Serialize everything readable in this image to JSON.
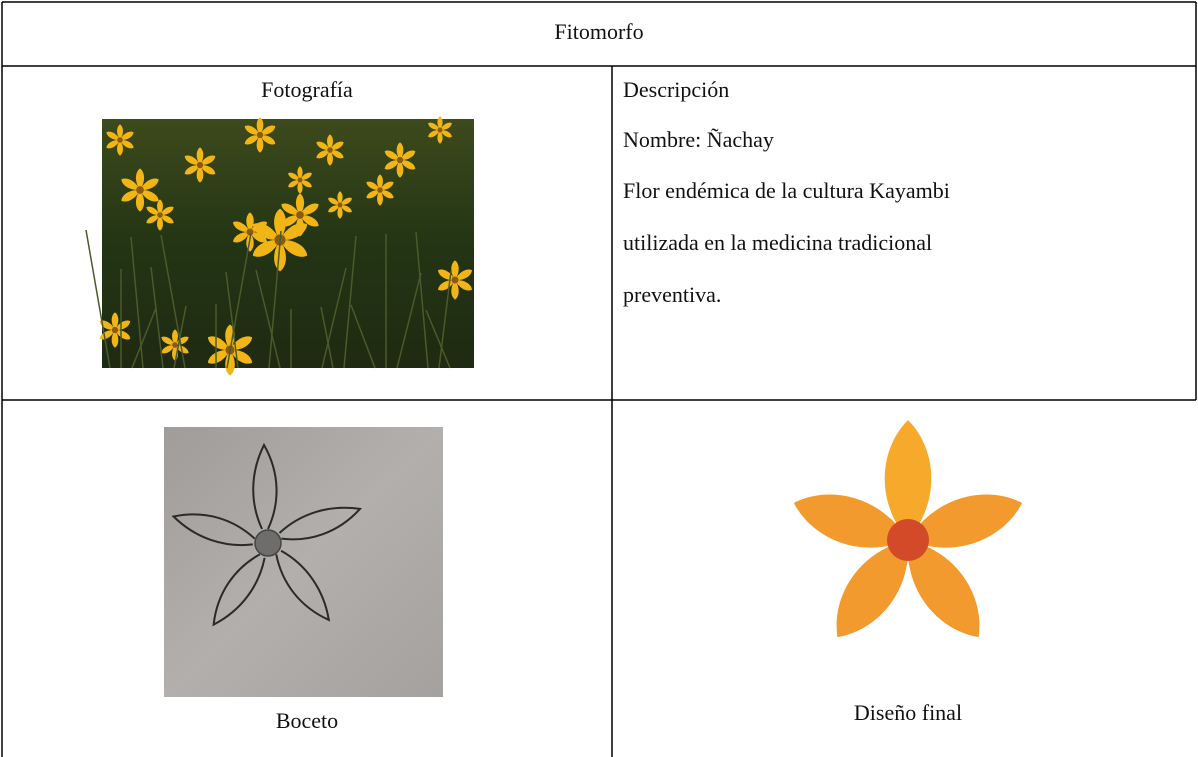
{
  "table": {
    "title": "Fitomorfo",
    "photo_header": "Fotografía",
    "description_header": "Descripción",
    "name": "Nombre: Ñachay",
    "description_lines": [
      "Flor endémica de la cultura Kayambi",
      "utilizada en la medicina tradicional",
      "preventiva."
    ],
    "sketch_caption": "Boceto",
    "final_caption": "Diseño final"
  }
}
